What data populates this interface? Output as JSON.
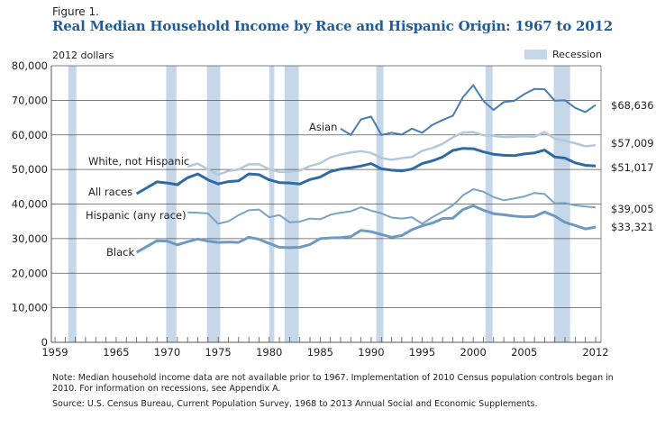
{
  "figure_label": "Figure 1.",
  "title": "Real Median Household Income by Race and Hispanic Origin: 1967 to 2012",
  "units_label": "2012 dollars",
  "legend": {
    "recession_label": "Recession",
    "recession_color": "#c5d7e8"
  },
  "note": "Note: Median household income data are not available prior to 1967. Implementation of 2010 Census population controls began in 2010. For information on recessions, see Appendix A.",
  "source": "Source: U.S. Census Bureau, Current Population Survey, 1968 to 2013 Annual Social and Economic Supplements.",
  "chart_data": {
    "type": "line",
    "title": "Real Median Household Income by Race and Hispanic Origin: 1967 to 2012",
    "xlabel": "",
    "ylabel": "2012 dollars",
    "xlim": [
      1959,
      2012
    ],
    "ylim": [
      0,
      80000
    ],
    "grid": true,
    "legend_position": "top-right",
    "x_ticks": [
      1959,
      1965,
      1970,
      1975,
      1980,
      1985,
      1990,
      1995,
      2000,
      2005,
      2012
    ],
    "y_ticks": [
      0,
      10000,
      20000,
      30000,
      40000,
      50000,
      60000,
      70000,
      80000
    ],
    "y_tick_labels": [
      "0",
      "10,000",
      "20,000",
      "30,000",
      "40,000",
      "50,000",
      "60,000",
      "70,000",
      "80,000"
    ],
    "recessions": [
      [
        1960.3,
        1961.1
      ],
      [
        1969.9,
        1970.9
      ],
      [
        1973.9,
        1975.2
      ],
      [
        1980.0,
        1980.5
      ],
      [
        1981.5,
        1982.9
      ],
      [
        1990.5,
        1991.2
      ],
      [
        2001.2,
        2001.9
      ],
      [
        2007.9,
        2009.5
      ]
    ],
    "series": [
      {
        "name": "Asian",
        "label": "Asian",
        "end_label": "$68,636",
        "color": "#4a7eb0",
        "width": 2,
        "x": [
          1987,
          1988,
          1989,
          1990,
          1991,
          1992,
          1993,
          1994,
          1995,
          1996,
          1997,
          1998,
          1999,
          2000,
          2001,
          2002,
          2003,
          2004,
          2005,
          2006,
          2007,
          2008,
          2009,
          2010,
          2011,
          2012
        ],
        "values": [
          61800,
          60000,
          64500,
          65300,
          60000,
          60600,
          60100,
          61800,
          60600,
          62900,
          64300,
          65500,
          70900,
          74400,
          69800,
          67200,
          69500,
          69800,
          71800,
          73300,
          73200,
          69900,
          70000,
          67800,
          66600,
          68636
        ]
      },
      {
        "name": "White, not Hispanic",
        "label": "White, not Hispanic",
        "end_label": "$57,009",
        "color": "#b3c8db",
        "width": 2.5,
        "x": [
          1972,
          1973,
          1974,
          1975,
          1976,
          1977,
          1978,
          1979,
          1980,
          1981,
          1982,
          1983,
          1984,
          1985,
          1986,
          1987,
          1988,
          1989,
          1990,
          1991,
          1992,
          1993,
          1994,
          1995,
          1996,
          1997,
          1998,
          1999,
          2000,
          2001,
          2002,
          2003,
          2004,
          2005,
          2006,
          2007,
          2008,
          2009,
          2010,
          2011,
          2012
        ],
        "values": [
          50800,
          51700,
          50000,
          48500,
          49600,
          50000,
          51500,
          51500,
          50100,
          49300,
          49300,
          49700,
          51000,
          51800,
          53500,
          54300,
          54900,
          55300,
          54800,
          53300,
          52800,
          53300,
          53600,
          55400,
          56200,
          57400,
          59300,
          60700,
          60800,
          59900,
          59700,
          59400,
          59500,
          59600,
          59500,
          60800,
          58900,
          58300,
          57600,
          56700,
          57009
        ]
      },
      {
        "name": "All races",
        "label": "All races",
        "end_label": "$51,017",
        "color": "#2f6aa3",
        "width": 3,
        "x": [
          1967,
          1968,
          1969,
          1970,
          1971,
          1972,
          1973,
          1974,
          1975,
          1976,
          1977,
          1978,
          1979,
          1980,
          1981,
          1982,
          1983,
          1984,
          1985,
          1986,
          1987,
          1988,
          1989,
          1990,
          1991,
          1992,
          1993,
          1994,
          1995,
          1996,
          1997,
          1998,
          1999,
          2000,
          2001,
          2002,
          2003,
          2004,
          2005,
          2006,
          2007,
          2008,
          2009,
          2010,
          2011,
          2012
        ],
        "values": [
          43000,
          44700,
          46400,
          46100,
          45600,
          47600,
          48700,
          47000,
          45800,
          46500,
          46700,
          48700,
          48500,
          47000,
          46200,
          46100,
          45800,
          47100,
          47800,
          49400,
          50100,
          50500,
          51000,
          51700,
          50200,
          49800,
          49600,
          50100,
          51700,
          52500,
          53600,
          55500,
          56100,
          56000,
          55100,
          54400,
          54100,
          54000,
          54500,
          54800,
          55600,
          53600,
          53300,
          51900,
          51200,
          51017
        ]
      },
      {
        "name": "Hispanic (any race)",
        "label": "Hispanic (any race)",
        "end_label": "$39,005",
        "color": "#7aa3c8",
        "width": 2,
        "x": [
          1972,
          1973,
          1974,
          1975,
          1976,
          1977,
          1978,
          1979,
          1980,
          1981,
          1982,
          1983,
          1984,
          1985,
          1986,
          1987,
          1988,
          1989,
          1990,
          1991,
          1992,
          1993,
          1994,
          1995,
          1996,
          1997,
          1998,
          1999,
          2000,
          2001,
          2002,
          2003,
          2004,
          2005,
          2006,
          2007,
          2008,
          2009,
          2010,
          2011,
          2012
        ],
        "values": [
          37600,
          37500,
          37300,
          34300,
          35000,
          36800,
          38200,
          38400,
          36200,
          36800,
          34700,
          34900,
          35800,
          35600,
          36900,
          37500,
          37900,
          39100,
          38100,
          37300,
          36100,
          35800,
          36200,
          34300,
          36200,
          37800,
          39600,
          42500,
          44300,
          43600,
          42000,
          41100,
          41600,
          42200,
          43200,
          42900,
          40200,
          40300,
          39600,
          39300,
          39005
        ]
      },
      {
        "name": "Black",
        "label": "Black",
        "end_label": "$33,321",
        "color": "#6e99c2",
        "width": 3,
        "x": [
          1967,
          1968,
          1969,
          1970,
          1971,
          1972,
          1973,
          1974,
          1975,
          1976,
          1977,
          1978,
          1979,
          1980,
          1981,
          1982,
          1983,
          1984,
          1985,
          1986,
          1987,
          1988,
          1989,
          1990,
          1991,
          1992,
          1993,
          1994,
          1995,
          1996,
          1997,
          1998,
          1999,
          2000,
          2001,
          2002,
          2003,
          2004,
          2005,
          2006,
          2007,
          2008,
          2009,
          2010,
          2011,
          2012
        ],
        "values": [
          26000,
          27700,
          29400,
          29300,
          28200,
          29100,
          29900,
          29300,
          28900,
          29000,
          28900,
          30400,
          29800,
          28600,
          27500,
          27400,
          27500,
          28300,
          30000,
          30200,
          30300,
          30600,
          32400,
          32000,
          31200,
          30400,
          30900,
          32600,
          33700,
          34500,
          35800,
          35900,
          38400,
          39500,
          38200,
          37200,
          36900,
          36500,
          36300,
          36400,
          37700,
          36500,
          34700,
          33800,
          32800,
          33321
        ]
      }
    ]
  }
}
